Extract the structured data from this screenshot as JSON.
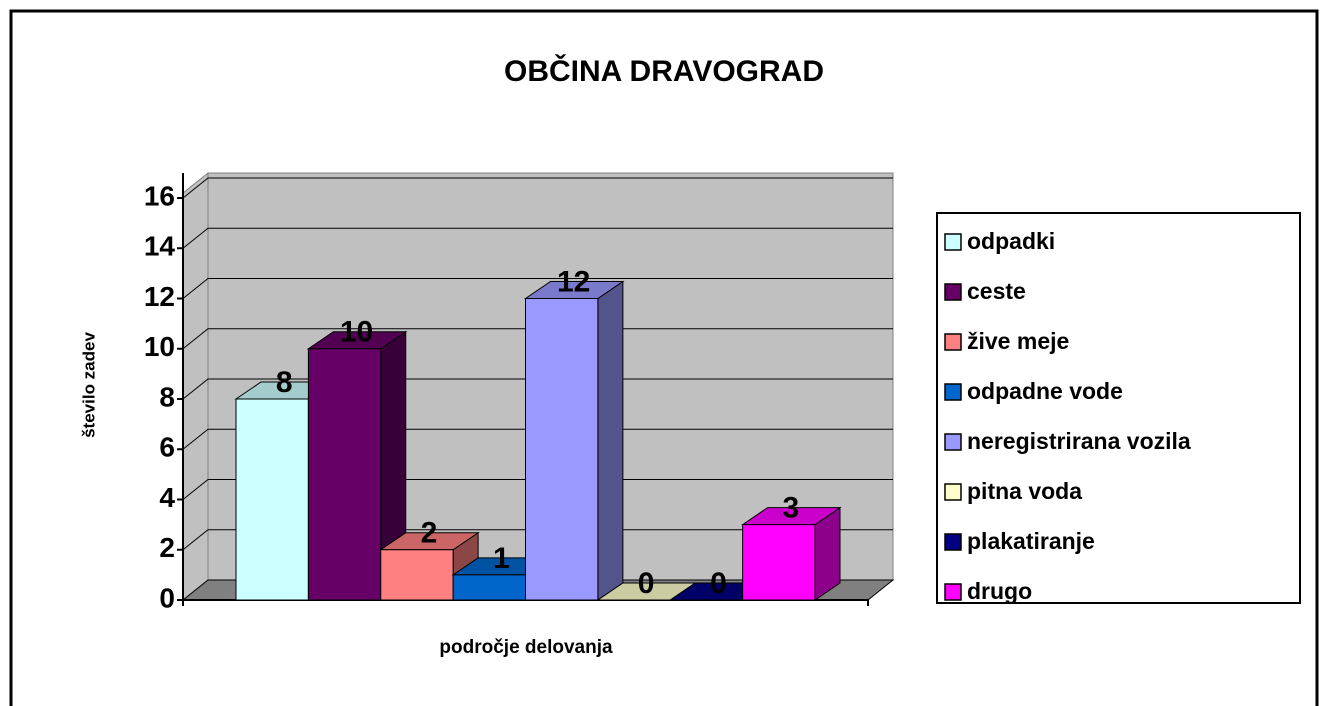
{
  "chart_data": {
    "type": "bar3d",
    "title": "OBČINA DRAVOGRAD",
    "y_label": "število zadev",
    "x_label": "področje delovanja",
    "categories": [
      null
    ],
    "ylim": [
      0,
      16
    ],
    "yticks": [
      0,
      2,
      4,
      6,
      8,
      10,
      12,
      14,
      16
    ],
    "grid": true,
    "legend": "right",
    "series": [
      {
        "name": "odpadki",
        "color": "#ccffff",
        "values": [
          8
        ]
      },
      {
        "name": "ceste",
        "color": "#660066",
        "values": [
          10
        ]
      },
      {
        "name": "žive meje",
        "color": "#ff8080",
        "values": [
          2
        ]
      },
      {
        "name": "odpadne vode",
        "color": "#0066cc",
        "values": [
          1
        ]
      },
      {
        "name": "neregistrirana vozila",
        "color": "#9999ff",
        "values": [
          12
        ]
      },
      {
        "name": "pitna voda",
        "color": "#ffffcc",
        "values": [
          0
        ]
      },
      {
        "name": "plakatiranje",
        "color": "#000080",
        "values": [
          0
        ]
      },
      {
        "name": "drugo",
        "color": "#ff00ff",
        "values": [
          3
        ]
      }
    ]
  }
}
